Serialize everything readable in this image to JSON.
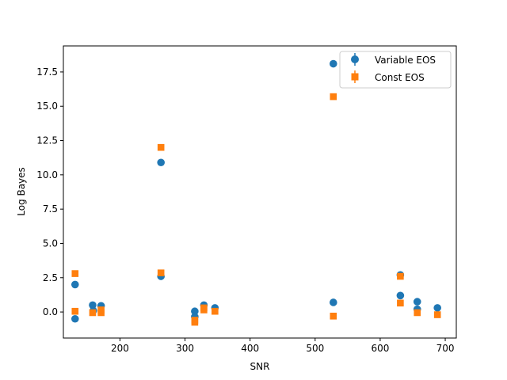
{
  "chart_data": {
    "type": "scatter",
    "title": "",
    "xlabel": "SNR",
    "ylabel": "Log Bayes",
    "xlim": [
      113,
      717
    ],
    "ylim": [
      -1.9,
      19.4
    ],
    "x_ticks": [
      200,
      300,
      400,
      500,
      600,
      700
    ],
    "y_ticks": [
      0.0,
      2.5,
      5.0,
      7.5,
      10.0,
      12.5,
      15.0,
      17.5
    ],
    "grid": false,
    "legend_position": "top-right",
    "series": [
      {
        "name": "Variable EOS",
        "marker": "circle",
        "color": "#1f77b4",
        "points": [
          [
            131,
            2.0
          ],
          [
            131,
            -0.5
          ],
          [
            158,
            0.5
          ],
          [
            159,
            0.1
          ],
          [
            171,
            0.45
          ],
          [
            263,
            10.9
          ],
          [
            263,
            2.6
          ],
          [
            315,
            0.05
          ],
          [
            315,
            -0.35
          ],
          [
            329,
            0.5
          ],
          [
            346,
            0.3
          ],
          [
            528,
            18.1
          ],
          [
            528,
            0.7
          ],
          [
            631,
            2.7
          ],
          [
            631,
            1.2
          ],
          [
            657,
            0.75
          ],
          [
            657,
            0.2
          ],
          [
            688,
            0.3
          ]
        ]
      },
      {
        "name": "Const EOS",
        "marker": "square",
        "color": "#ff7f0e",
        "points": [
          [
            131,
            2.8
          ],
          [
            131,
            0.05
          ],
          [
            158,
            -0.05
          ],
          [
            171,
            -0.05
          ],
          [
            171,
            0.15
          ],
          [
            263,
            12.0
          ],
          [
            263,
            2.85
          ],
          [
            315,
            -0.75
          ],
          [
            315,
            -0.6
          ],
          [
            329,
            0.3
          ],
          [
            329,
            0.15
          ],
          [
            346,
            0.05
          ],
          [
            528,
            15.7
          ],
          [
            528,
            -0.3
          ],
          [
            631,
            2.6
          ],
          [
            631,
            0.65
          ],
          [
            657,
            -0.05
          ],
          [
            688,
            -0.2
          ]
        ]
      }
    ]
  }
}
